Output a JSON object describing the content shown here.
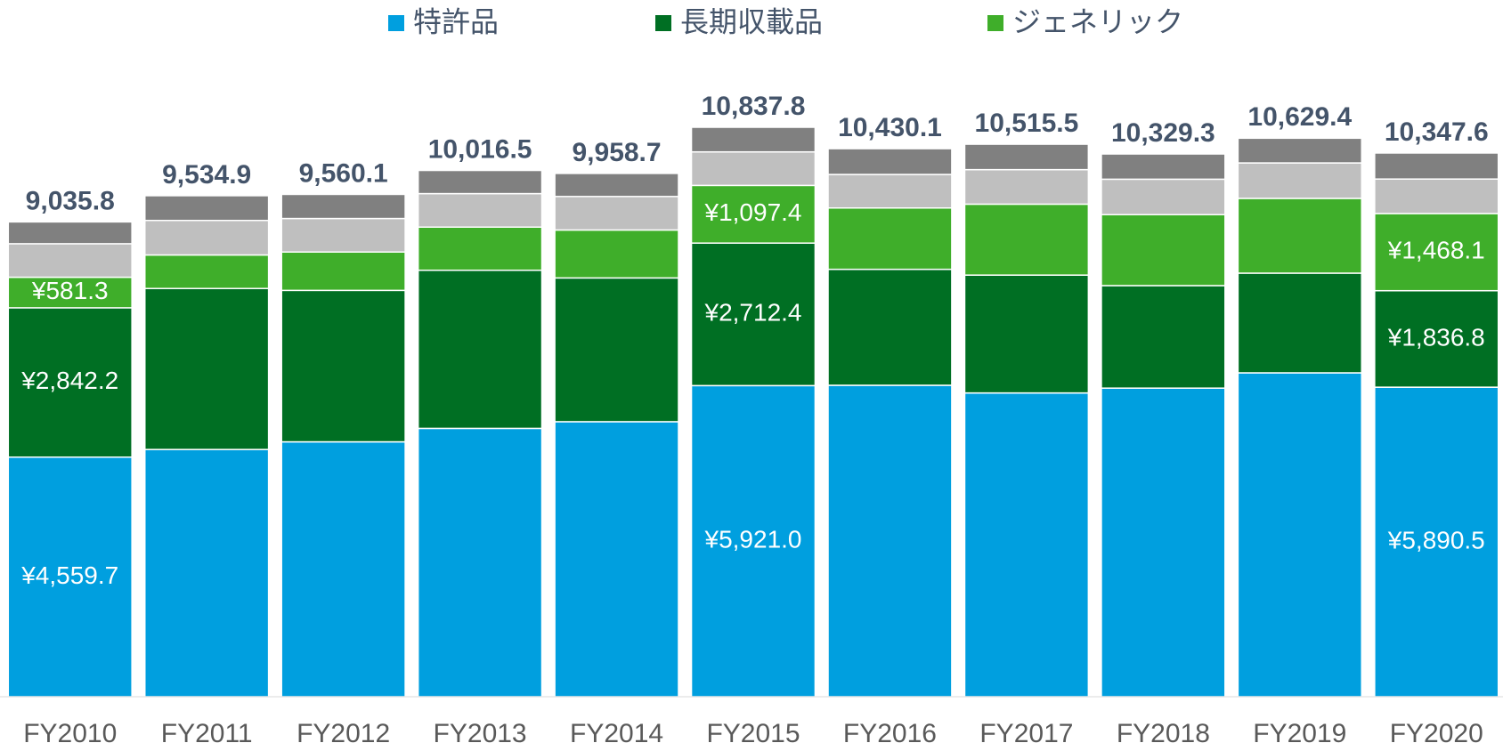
{
  "chart_data": {
    "type": "stacked_bar",
    "categories": [
      "FY2010",
      "FY2011",
      "FY2012",
      "FY2013",
      "FY2014",
      "FY2015",
      "FY2016",
      "FY2017",
      "FY2018",
      "FY2019",
      "FY2020"
    ],
    "series": [
      {
        "name": "特許品",
        "color": "#009fdf",
        "values": [
          4559.7,
          4705,
          4851,
          5107,
          5234,
          5921.0,
          5927,
          5781,
          5873,
          6164,
          5890.5
        ],
        "value_labels": [
          "¥4,559.7",
          null,
          null,
          null,
          null,
          "¥5,921.0",
          null,
          null,
          null,
          null,
          "¥5,890.5"
        ]
      },
      {
        "name": "長期収載品",
        "color": "#006f23",
        "values": [
          2842.2,
          3064,
          2882,
          3009,
          2736,
          2712.4,
          2207,
          2243,
          1951,
          1897,
          1836.8
        ],
        "value_labels": [
          "¥2,842.2",
          null,
          null,
          null,
          null,
          "¥2,712.4",
          null,
          null,
          null,
          null,
          "¥1,836.8"
        ]
      },
      {
        "name": "ジェネリック",
        "color": "#3fae2a",
        "values": [
          581.3,
          638,
          730,
          821,
          912,
          1097.4,
          1167,
          1350,
          1350,
          1423,
          1468.1
        ],
        "value_labels": [
          "¥581.3",
          null,
          null,
          null,
          null,
          "¥1,097.4",
          null,
          null,
          null,
          null,
          "¥1,468.1"
        ]
      },
      {
        "color": "#bfbfbf",
        "values": [
          638,
          657,
          638,
          638,
          638,
          638,
          638,
          657,
          675,
          675,
          657
        ]
      },
      {
        "color": "#808080",
        "values": [
          415,
          471,
          459,
          441,
          439,
          469,
          491,
          484,
          480,
          470,
          495
        ]
      }
    ],
    "totals": [
      9035.8,
      9534.9,
      9560.1,
      10016.5,
      9958.7,
      10837.8,
      10430.1,
      10515.5,
      10329.3,
      10629.4,
      10347.6
    ],
    "total_labels": [
      "9,035.8",
      "9,534.9",
      "9,560.1",
      "10,016.5",
      "9,958.7",
      "10,837.8",
      "10,430.1",
      "10,515.5",
      "10,329.3",
      "10,629.4",
      "10,347.6"
    ],
    "legend": "top"
  }
}
